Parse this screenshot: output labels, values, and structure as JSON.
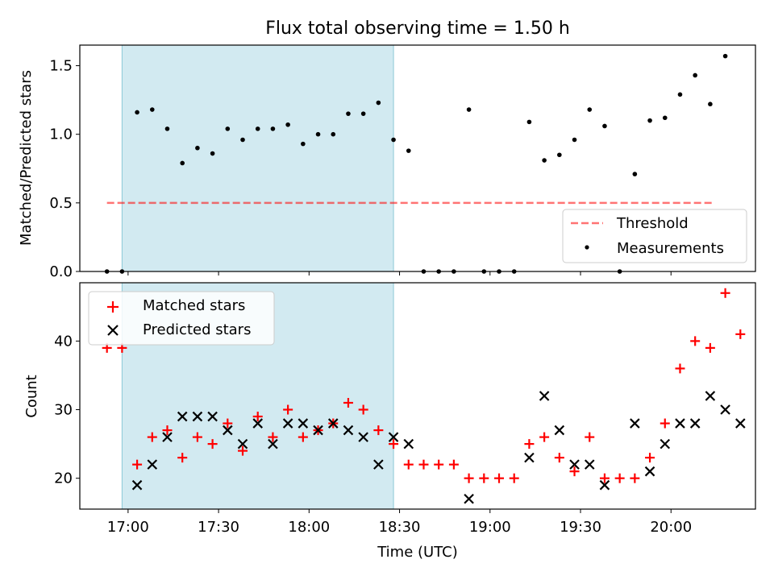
{
  "figure_title": "Flux total observing time = 1.50 h",
  "x_axis": {
    "label": "Time (UTC)",
    "tick_labels": [
      "17:00",
      "17:30",
      "18:00",
      "18:30",
      "19:00",
      "19:30",
      "20:00"
    ]
  },
  "colors": {
    "highlight_band": "#add8e6",
    "threshold": "#ff0000",
    "measurements": "#000000",
    "matched": "#ff0000",
    "predicted": "#000000"
  },
  "chart_data": [
    {
      "type": "scatter",
      "ylabel": "Matched/Predicted stars",
      "ylim": [
        0,
        1.65
      ],
      "xlim": [
        "16:44",
        "20:28"
      ],
      "y_ticks": [
        "0.0",
        "0.5",
        "1.0",
        "1.5"
      ],
      "shaded_interval": [
        "16:58",
        "18:28"
      ],
      "threshold": {
        "name": "Threshold",
        "value": 0.5,
        "x_range": [
          "16:53",
          "20:14"
        ],
        "style": "dashed"
      },
      "legend": {
        "position": "lower-right",
        "entries": [
          "Threshold",
          "Measurements"
        ]
      },
      "series": [
        {
          "name": "Measurements",
          "x": [
            "16:53",
            "16:58",
            "17:03",
            "17:08",
            "17:13",
            "17:18",
            "17:23",
            "17:28",
            "17:33",
            "17:38",
            "17:43",
            "17:48",
            "17:53",
            "17:58",
            "18:03",
            "18:08",
            "18:13",
            "18:18",
            "18:23",
            "18:28",
            "18:33",
            "18:38",
            "18:43",
            "18:48",
            "18:53",
            "18:58",
            "19:03",
            "19:08",
            "19:13",
            "19:18",
            "19:23",
            "19:28",
            "19:33",
            "19:38",
            "19:43",
            "19:48",
            "19:53",
            "19:58",
            "20:03",
            "20:08",
            "20:13",
            "20:18"
          ],
          "y": [
            0.0,
            0.0,
            1.16,
            1.18,
            1.04,
            0.79,
            0.9,
            0.86,
            1.04,
            0.96,
            1.04,
            1.04,
            1.07,
            0.93,
            1.0,
            1.0,
            1.15,
            1.15,
            1.23,
            0.96,
            0.88,
            0.0,
            0.0,
            0.0,
            1.18,
            0.0,
            0.0,
            0.0,
            1.09,
            0.81,
            0.85,
            0.96,
            1.18,
            1.06,
            0.0,
            0.71,
            1.1,
            1.12,
            1.29,
            1.43,
            1.22,
            1.57
          ]
        }
      ]
    },
    {
      "type": "scatter",
      "ylabel": "Count",
      "ylim": [
        15.5,
        48.5
      ],
      "y_ticks": [
        "20",
        "30",
        "40"
      ],
      "legend": {
        "position": "top-left",
        "entries": [
          "Matched stars",
          "Predicted stars"
        ]
      },
      "series": [
        {
          "name": "Matched stars",
          "marker": "plus",
          "x": [
            "16:53",
            "16:58",
            "17:03",
            "17:08",
            "17:13",
            "17:18",
            "17:23",
            "17:28",
            "17:33",
            "17:38",
            "17:43",
            "17:48",
            "17:53",
            "17:58",
            "18:03",
            "18:08",
            "18:13",
            "18:18",
            "18:23",
            "18:28",
            "18:33",
            "18:38",
            "18:43",
            "18:48",
            "18:53",
            "18:58",
            "19:03",
            "19:08",
            "19:13",
            "19:18",
            "19:23",
            "19:28",
            "19:33",
            "19:38",
            "19:43",
            "19:48",
            "19:53",
            "19:58",
            "20:03",
            "20:08",
            "20:13",
            "20:18",
            "20:23"
          ],
          "y": [
            39,
            39,
            22,
            26,
            27,
            23,
            26,
            25,
            28,
            24,
            29,
            26,
            30,
            26,
            27,
            28,
            31,
            30,
            27,
            25,
            22,
            22,
            22,
            22,
            20,
            20,
            20,
            20,
            25,
            26,
            23,
            21,
            26,
            20,
            20,
            20,
            23,
            28,
            36,
            40,
            39,
            47,
            41
          ]
        },
        {
          "name": "Predicted stars",
          "marker": "x",
          "x": [
            "17:03",
            "17:08",
            "17:13",
            "17:18",
            "17:23",
            "17:28",
            "17:33",
            "17:38",
            "17:43",
            "17:48",
            "17:53",
            "17:58",
            "18:03",
            "18:08",
            "18:13",
            "18:18",
            "18:23",
            "18:28",
            "18:33",
            "18:53",
            "19:13",
            "19:18",
            "19:23",
            "19:28",
            "19:33",
            "19:38",
            "19:48",
            "19:53",
            "19:58",
            "20:03",
            "20:08",
            "20:13",
            "20:18",
            "20:23"
          ],
          "y": [
            19,
            22,
            26,
            29,
            29,
            29,
            27,
            25,
            28,
            25,
            28,
            28,
            27,
            28,
            27,
            26,
            22,
            26,
            25,
            17,
            23,
            32,
            27,
            22,
            22,
            19,
            28,
            21,
            25,
            28,
            28,
            32,
            30,
            28
          ]
        }
      ]
    }
  ]
}
